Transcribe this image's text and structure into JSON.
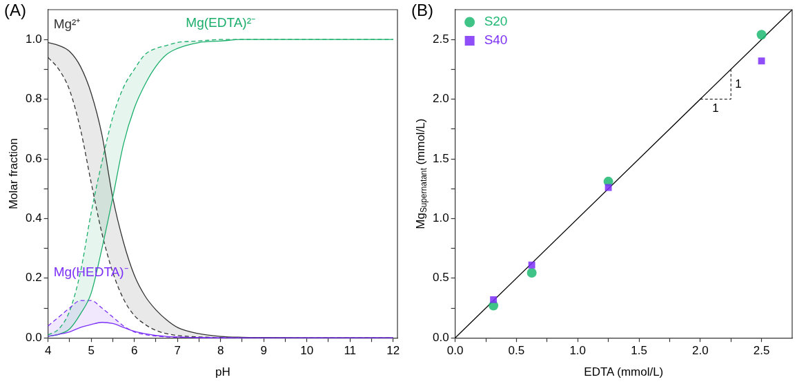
{
  "chart_data": [
    {
      "type": "line",
      "title": "(A)",
      "xlabel": "pH",
      "ylabel": "Molar fraction",
      "legend": false,
      "grid": false,
      "marker": "none",
      "xlim": [
        4,
        12.1
      ],
      "ylim": [
        0,
        1.1
      ],
      "xticks": [
        4,
        {
          "value": 4.5,
          "label": null
        },
        5,
        {
          "value": 5.5,
          "label": null
        },
        6,
        {
          "value": 6.5,
          "label": null
        },
        7,
        {
          "value": 7.5,
          "label": null
        },
        8,
        {
          "value": 8.5,
          "label": null
        },
        9,
        {
          "value": 9.5,
          "label": null
        },
        10,
        {
          "value": 10.5,
          "label": null
        },
        11,
        {
          "value": 11.5,
          "label": null
        },
        12
      ],
      "yticks": [
        {
          "value": 0,
          "label": "0.0"
        },
        {
          "value": 0.1,
          "label": null
        },
        0.2,
        {
          "value": 0.3,
          "label": null
        },
        0.4,
        {
          "value": 0.5,
          "label": null
        },
        0.6,
        {
          "value": 0.7,
          "label": null
        },
        0.8,
        {
          "value": 0.9,
          "label": null
        },
        {
          "value": 1,
          "label": "1.0"
        }
      ],
      "x": [
        4,
        4.25,
        4.5,
        4.75,
        5,
        5.25,
        5.5,
        5.75,
        6,
        6.25,
        6.5,
        6.75,
        7,
        7.5,
        8,
        8.5,
        9,
        10,
        11,
        12
      ],
      "series": [
        {
          "color": "#333333",
          "line_style": "dashed",
          "values": [
            0.94,
            0.9,
            0.83,
            0.7,
            0.52,
            0.35,
            0.22,
            0.13,
            0.075,
            0.045,
            0.025,
            0.014,
            0.008,
            0.003,
            0.001,
            0,
            0,
            0,
            0,
            0
          ]
        },
        {
          "color": "#1aae6b",
          "line_style": "dashed",
          "values": [
            0.01,
            0.03,
            0.09,
            0.22,
            0.42,
            0.59,
            0.74,
            0.84,
            0.9,
            0.95,
            0.97,
            0.98,
            0.99,
            0.995,
            1,
            1,
            1,
            1,
            1,
            1
          ]
        },
        {
          "color": "#7b2ff7",
          "line_style": "dashed",
          "values": [
            0.04,
            0.07,
            0.1,
            0.125,
            0.125,
            0.1,
            0.07,
            0.04,
            0.02,
            0.011,
            0.006,
            0.003,
            0.002,
            0.001,
            0,
            0,
            0,
            0,
            0,
            0
          ]
        },
        {
          "name": "Mg²⁺",
          "color": "#333333",
          "values": [
            0.99,
            0.98,
            0.96,
            0.91,
            0.82,
            0.68,
            0.47,
            0.32,
            0.21,
            0.14,
            0.094,
            0.06,
            0.035,
            0.014,
            0.005,
            0.002,
            0.001,
            0,
            0,
            0
          ],
          "lower": [
            0.94,
            0.9,
            0.83,
            0.7,
            0.52,
            0.35,
            0.22,
            0.13,
            0.075,
            0.045,
            0.025,
            0.014,
            0.008,
            0.003,
            0.001,
            0,
            0,
            0,
            0,
            0
          ],
          "upper": [
            0.99,
            0.98,
            0.96,
            0.91,
            0.82,
            0.68,
            0.47,
            0.32,
            0.21,
            0.14,
            0.094,
            0.06,
            0.035,
            0.014,
            0.005,
            0.002,
            0.001,
            0,
            0,
            0
          ]
        },
        {
          "name": "Mg(EDTA)²⁻",
          "color": "#1aae6b",
          "values": [
            0.005,
            0.012,
            0.03,
            0.08,
            0.15,
            0.3,
            0.47,
            0.65,
            0.77,
            0.85,
            0.91,
            0.95,
            0.97,
            0.99,
            0.995,
            1,
            1,
            1,
            1,
            1
          ],
          "lower": [
            0.005,
            0.012,
            0.03,
            0.08,
            0.15,
            0.3,
            0.47,
            0.65,
            0.77,
            0.85,
            0.91,
            0.95,
            0.97,
            0.99,
            0.995,
            1,
            1,
            1,
            1,
            1
          ],
          "upper": [
            0.01,
            0.03,
            0.09,
            0.22,
            0.42,
            0.59,
            0.74,
            0.84,
            0.9,
            0.95,
            0.97,
            0.98,
            0.99,
            0.995,
            1,
            1,
            1,
            1,
            1,
            1
          ]
        },
        {
          "name": "Mg(HEDTA)⁻",
          "color": "#7b2ff7",
          "values": [
            0.005,
            0.012,
            0.02,
            0.035,
            0.045,
            0.052,
            0.048,
            0.035,
            0.022,
            0.014,
            0.008,
            0.005,
            0.003,
            0.001,
            0,
            0,
            0,
            0,
            0,
            0
          ],
          "lower": [
            0.005,
            0.012,
            0.02,
            0.035,
            0.045,
            0.052,
            0.048,
            0.035,
            0.022,
            0.014,
            0.008,
            0.005,
            0.003,
            0.001,
            0,
            0,
            0,
            0,
            0,
            0
          ],
          "upper": [
            0.04,
            0.07,
            0.1,
            0.125,
            0.125,
            0.1,
            0.07,
            0.04,
            0.02,
            0.011,
            0.006,
            0.003,
            0.002,
            0.001,
            0,
            0,
            0,
            0,
            0,
            0
          ]
        }
      ]
    },
    {
      "type": "scatter",
      "title": "(B)",
      "xlabel": "EDTA (mmol/L)",
      "ylabel": "Mg$_{Supernatant}$ (mmol/L)",
      "legend": "top left",
      "grid": false,
      "xlim": [
        0,
        2.75
      ],
      "ylim": [
        0,
        2.75
      ],
      "xticks": [
        {
          "value": 0,
          "label": "0.0"
        },
        {
          "value": 0.25,
          "label": null
        },
        0.5,
        {
          "value": 0.75,
          "label": null
        },
        {
          "value": 1,
          "label": "1.0"
        },
        {
          "value": 1.25,
          "label": null
        },
        1.5,
        {
          "value": 1.75,
          "label": null
        },
        {
          "value": 2,
          "label": "2.0"
        },
        {
          "value": 2.25,
          "label": null
        },
        2.5
      ],
      "yticks": [
        {
          "value": 0,
          "label": "0.0"
        },
        {
          "value": 0.25,
          "label": null
        },
        0.5,
        {
          "value": 0.75,
          "label": null
        },
        {
          "value": 1,
          "label": "1.0"
        },
        {
          "value": 1.25,
          "label": null
        },
        1.5,
        {
          "value": 1.75,
          "label": null
        },
        {
          "value": 2,
          "label": "2.0"
        },
        {
          "value": 2.25,
          "label": null
        },
        2.5
      ],
      "x": [
        0.3125,
        0.625,
        1.25,
        2.5
      ],
      "series": [
        {
          "type": "line",
          "color": "#000000",
          "x": [
            0,
            2.75
          ],
          "values": [
            0,
            2.75
          ],
          "marker": "none"
        },
        {
          "name": "S20",
          "color": "#1fb872",
          "marker": "circle",
          "values": [
            0.27,
            0.545,
            1.31,
            2.54
          ]
        },
        {
          "name": "S40",
          "color": "#7b2ff7",
          "marker": "square",
          "values": [
            0.32,
            0.61,
            1.26,
            2.32
          ]
        }
      ],
      "annotations": [
        {
          "text": "1",
          "x": 2,
          "y": 2
        },
        {
          "text": "1",
          "x": 2.25,
          "y": 2.25
        }
      ]
    }
  ]
}
